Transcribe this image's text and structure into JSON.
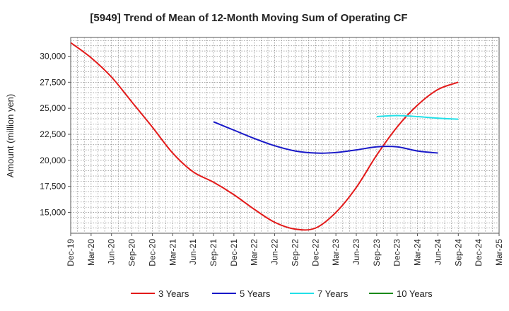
{
  "chart_data": {
    "type": "line",
    "title": "[5949]  Trend of Mean of 12-Month Moving Sum of Operating CF",
    "xlabel": "",
    "ylabel": "Amount (million yen)",
    "x_ticks": [
      "Dec-19",
      "Mar-20",
      "Jun-20",
      "Sep-20",
      "Dec-20",
      "Mar-21",
      "Jun-21",
      "Sep-21",
      "Dec-21",
      "Mar-22",
      "Jun-22",
      "Sep-22",
      "Dec-22",
      "Mar-23",
      "Jun-23",
      "Sep-23",
      "Dec-23",
      "Mar-24",
      "Jun-24",
      "Sep-24",
      "Dec-24",
      "Mar-25"
    ],
    "y_ticks": [
      15000,
      17500,
      20000,
      22500,
      25000,
      27500,
      30000
    ],
    "y_tick_labels": [
      "15,000",
      "17,500",
      "20,000",
      "22,500",
      "25,000",
      "27,500",
      "30,000"
    ],
    "ylim": [
      13000,
      31800
    ],
    "grid": true,
    "legend_position": "bottom",
    "series": [
      {
        "name": "3 Years",
        "color": "#e31a1a",
        "start_index": 0,
        "values": [
          31300,
          29850,
          28000,
          25600,
          23200,
          20700,
          18900,
          17900,
          16700,
          15300,
          14050,
          13400,
          13500,
          15000,
          17400,
          20500,
          23200,
          25300,
          26800,
          27500
        ]
      },
      {
        "name": "5 Years",
        "color": "#1818c8",
        "start_index": 7,
        "values": [
          23700,
          22900,
          22100,
          21400,
          20900,
          20700,
          20750,
          21000,
          21300,
          21300,
          20900,
          20700
        ]
      },
      {
        "name": "7 Years",
        "color": "#22e0e8",
        "start_index": 15,
        "values": [
          24200,
          24300,
          24200,
          24050,
          23950
        ]
      },
      {
        "name": "10 Years",
        "color": "#1a8a1a",
        "start_index": 0,
        "values": []
      }
    ]
  }
}
